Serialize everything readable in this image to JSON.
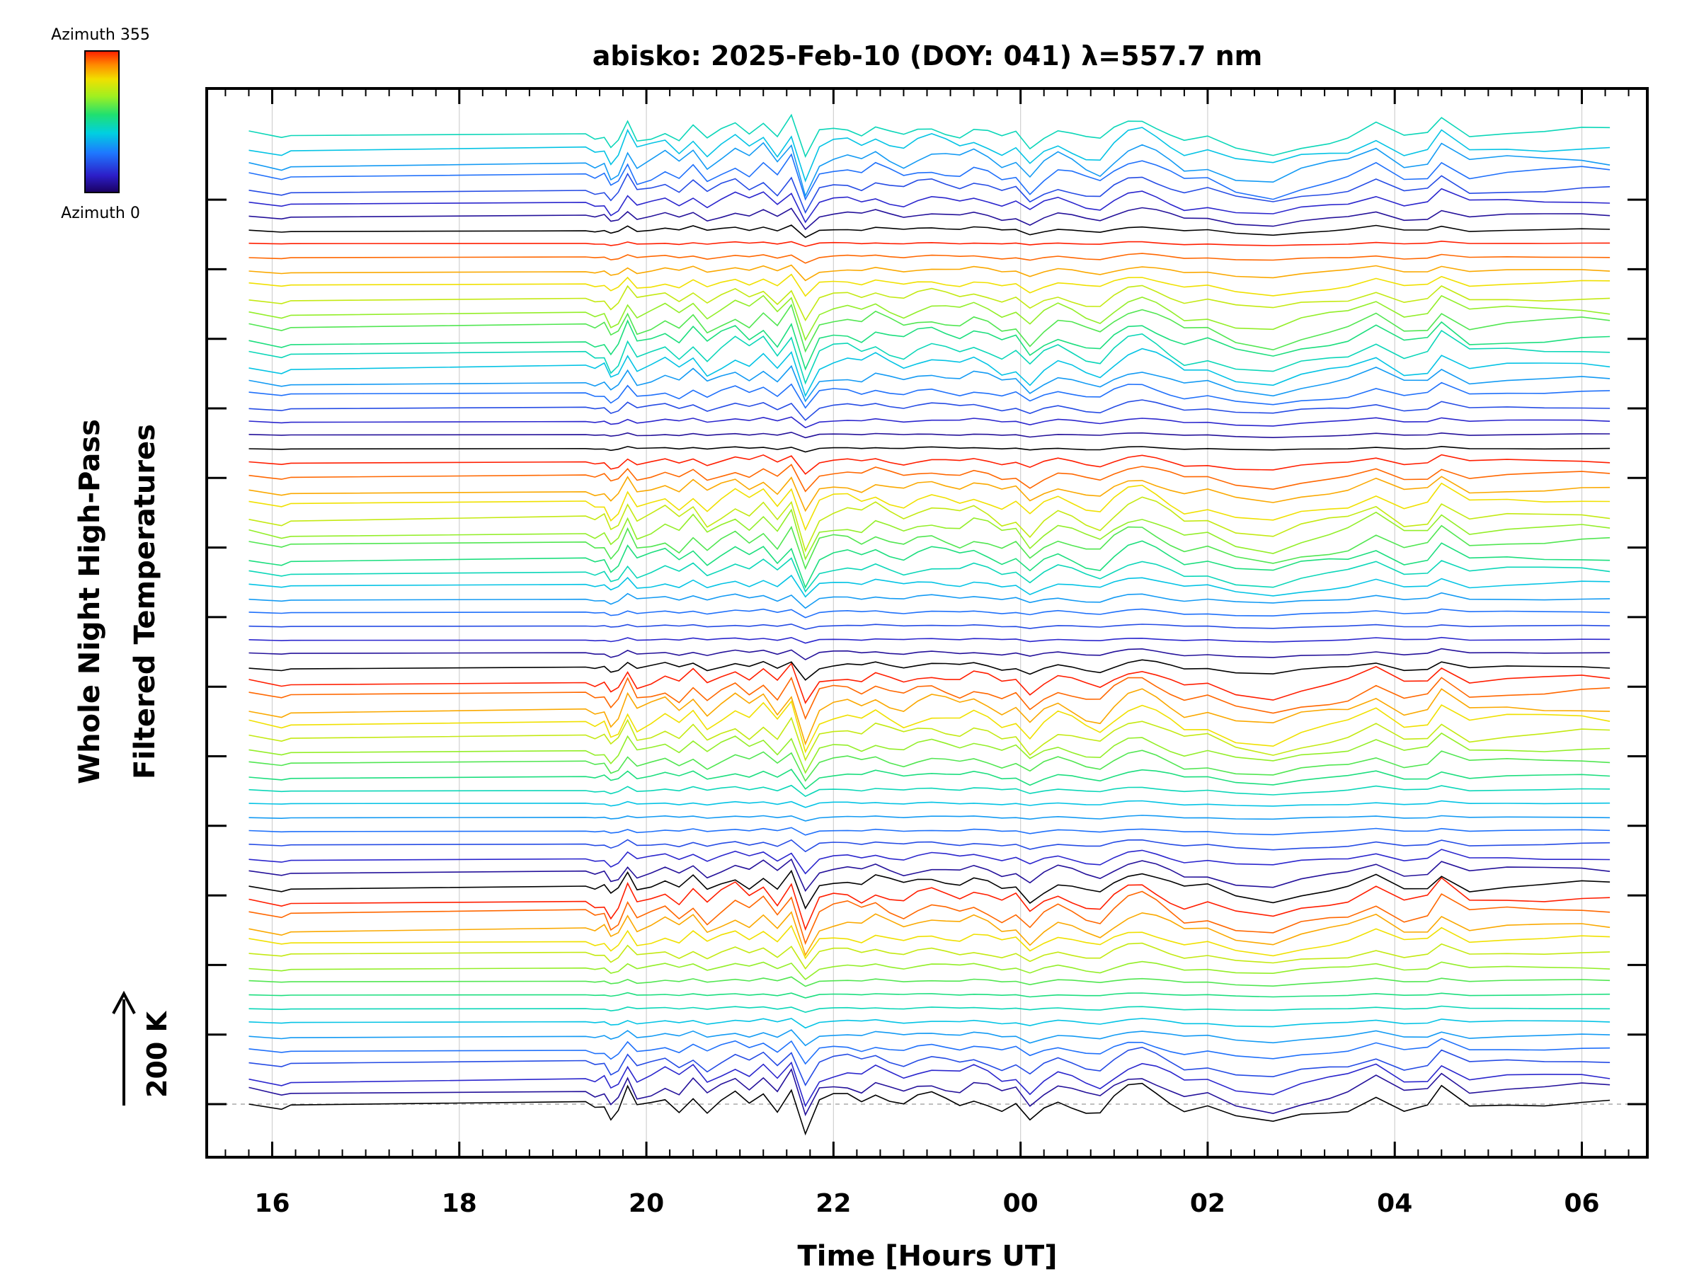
{
  "chart_data": {
    "type": "line",
    "title": "abisko: 2025-Feb-10 (DOY: 041) λ=557.7 nm",
    "xlabel": "Time [Hours UT]",
    "ylabel": [
      "Whole Night High-Pass",
      "Filtered Temperatures"
    ],
    "scale_label": "200 K",
    "x_tick_labels": [
      "16",
      "18",
      "20",
      "22",
      "00",
      "02",
      "04",
      "06"
    ],
    "x_range_hours": [
      15.3,
      30.7
    ],
    "x_grid": true,
    "colorbar": {
      "top_label": "Azimuth 355",
      "bottom_label": "Azimuth 0",
      "colormap": "rainbow",
      "azimuth_range": [
        0,
        355
      ]
    },
    "series_count": 72,
    "sample_times_hours": [
      15.75,
      16.1,
      16.2,
      19.35,
      19.45,
      19.55,
      19.62,
      19.7,
      19.8,
      19.9,
      20.05,
      20.2,
      20.35,
      20.5,
      20.65,
      20.8,
      20.95,
      21.1,
      21.25,
      21.4,
      21.55,
      21.7,
      21.85,
      22.0,
      22.15,
      22.3,
      22.45,
      22.6,
      22.75,
      22.9,
      23.05,
      23.2,
      23.35,
      23.5,
      23.65,
      23.8,
      23.95,
      24.1,
      24.25,
      24.4,
      24.55,
      24.7,
      24.85,
      25.0,
      25.15,
      25.3,
      25.45,
      25.6,
      25.75,
      26.0,
      26.3,
      26.7,
      27.0,
      27.3,
      27.5,
      27.8,
      28.1,
      28.35,
      28.5,
      28.8,
      29.2,
      29.6,
      30.0,
      30.3
    ],
    "reference_profile": [
      0,
      -4,
      -2,
      0,
      -3,
      -1,
      -9,
      -5,
      8,
      -3,
      0,
      4,
      -2,
      6,
      -4,
      2,
      7,
      1,
      8,
      -2,
      10,
      -18,
      0,
      3,
      4,
      1,
      6,
      2,
      -1,
      3,
      5,
      3,
      1,
      5,
      2,
      -3,
      0,
      -10,
      -2,
      3,
      0,
      -4,
      -6,
      2,
      8,
      10,
      6,
      1,
      -4,
      -2,
      -9,
      -12,
      -6,
      -3,
      -1,
      7,
      -3,
      -1,
      10,
      -1,
      1,
      1,
      2,
      1
    ],
    "profile_units": "K",
    "scale_bar_K": 200
  }
}
